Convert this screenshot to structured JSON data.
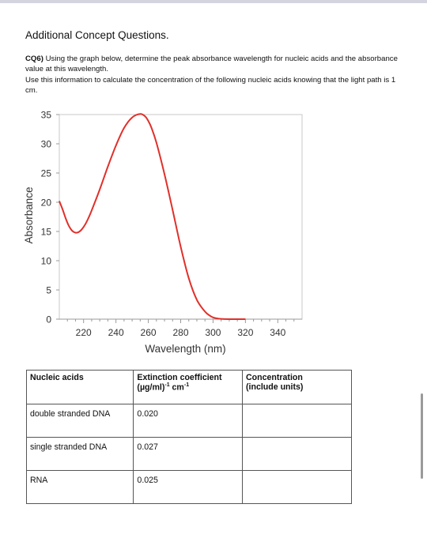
{
  "heading": "Additional Concept Questions.",
  "question": {
    "label": "CQ6)",
    "line1": " Using the graph below, determine the peak absorbance wavelength for nucleic acids and the absorbance value at this wavelength.",
    "line2": "Use this information to calculate the concentration of the following nucleic acids knowing that the light path is 1 cm."
  },
  "chart_data": {
    "type": "line",
    "title": "",
    "xlabel": "Wavelength (nm)",
    "ylabel": "Absorbance",
    "xlim": [
      205,
      355
    ],
    "ylim": [
      0,
      35
    ],
    "xticks": [
      220,
      240,
      260,
      280,
      300,
      320,
      340
    ],
    "yticks": [
      0,
      5,
      10,
      15,
      20,
      25,
      30,
      35
    ],
    "grid": false,
    "line_color": "#e0302a",
    "series": [
      {
        "x": [
          205,
          207,
          209,
          211,
          213,
          215,
          217,
          219,
          221,
          223,
          225,
          230,
          235,
          240,
          245,
          250,
          255,
          258,
          260,
          262,
          265,
          270,
          275,
          280,
          285,
          290,
          295,
          298,
          300,
          303,
          306,
          310,
          315,
          320
        ],
        "y": [
          20.2,
          18.8,
          17.2,
          15.9,
          15.1,
          14.8,
          14.9,
          15.4,
          16.2,
          17.3,
          18.6,
          22.2,
          26.1,
          29.7,
          32.7,
          34.5,
          35.1,
          34.7,
          33.9,
          32.7,
          30.2,
          24.8,
          18.7,
          12.4,
          7.0,
          3.3,
          1.3,
          0.6,
          0.3,
          0.1,
          0.03,
          0.0,
          0.0,
          0.0
        ]
      }
    ]
  },
  "table": {
    "headers": [
      "Nucleic acids",
      "Extinction coefficient\n(µg/ml)-1 cm-1",
      "Concentration\n(include units)"
    ],
    "header_ext_line1": "Extinction coefficient",
    "header_ext_line2_main": "(µg/ml)",
    "header_ext_sup1": "-1",
    "header_ext_unit": " cm",
    "header_ext_sup2": "-1",
    "header_conc_line1": "Concentration",
    "header_conc_line2": "(include units)",
    "rows": [
      {
        "name": "double stranded DNA",
        "coefficient": "0.020",
        "concentration": ""
      },
      {
        "name": "single stranded DNA",
        "coefficient": "0.027",
        "concentration": ""
      },
      {
        "name": "RNA",
        "coefficient": "0.025",
        "concentration": ""
      }
    ]
  }
}
